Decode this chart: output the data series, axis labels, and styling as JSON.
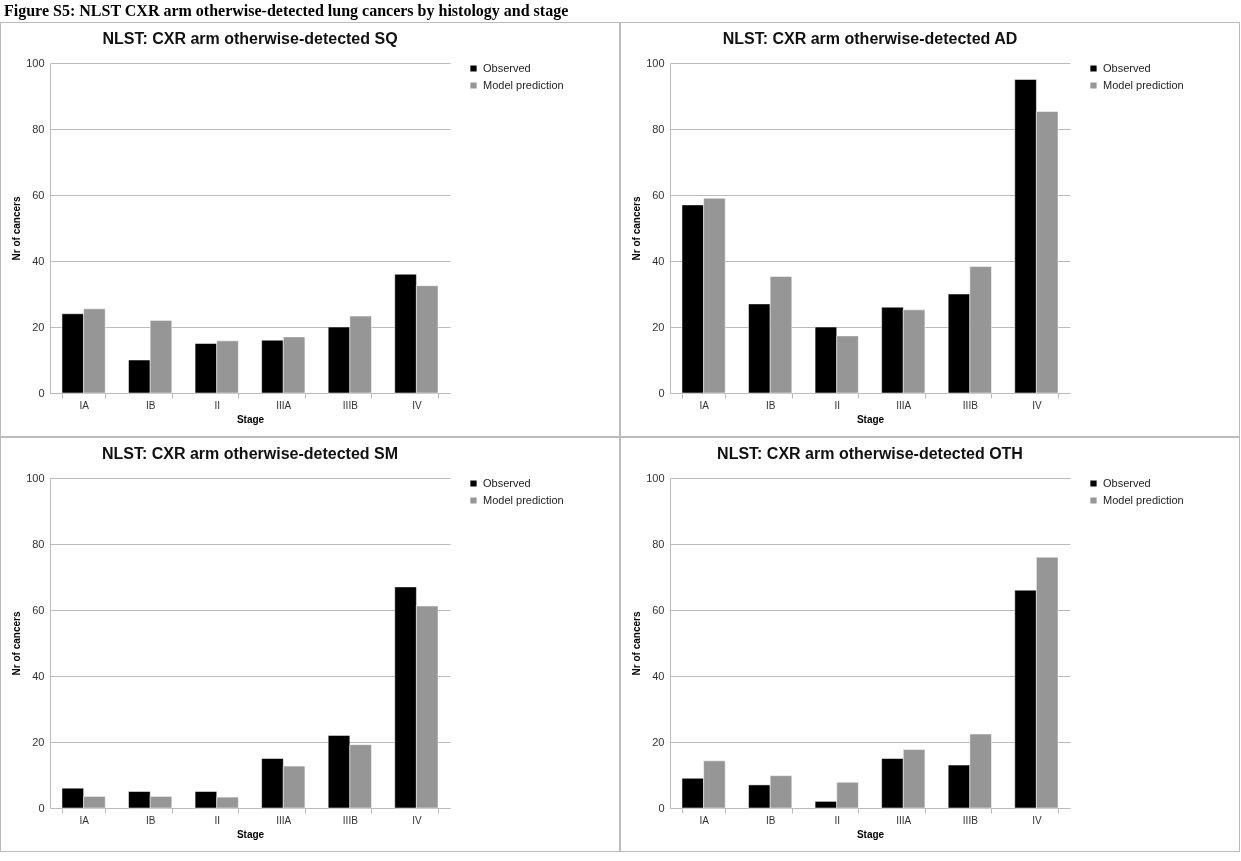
{
  "chart_data": [
    {
      "type": "bar",
      "title": "NLST: CXR arm otherwise-detected SQ",
      "xlabel": "Stage",
      "ylabel": "Nr of cancers",
      "annotations": [
        "Figure S5: NLST CXR arm otherwise-detected lung cancers by histology and stage"
      ],
      "categories": [
        "IA",
        "IB",
        "II",
        "IIIA",
        "IIIB",
        "IV"
      ],
      "ylim": [
        0,
        100
      ],
      "yticks": [
        0,
        20,
        40,
        60,
        80,
        100
      ],
      "grid": "y",
      "legend": "right",
      "series": [
        {
          "name": "Observed",
          "color": "#000000",
          "values": [
            24,
            10,
            15,
            16,
            20,
            36
          ]
        },
        {
          "name": "Model prediction",
          "color": "#969696",
          "values": [
            25.5,
            22,
            15.8,
            17,
            23.3,
            32.5
          ]
        }
      ]
    },
    {
      "type": "bar",
      "title": "NLST: CXR arm otherwise-detected AD",
      "xlabel": "Stage",
      "ylabel": "Nr of cancers",
      "categories": [
        "IA",
        "IB",
        "II",
        "IIIA",
        "IIIB",
        "IV"
      ],
      "ylim": [
        0,
        100
      ],
      "yticks": [
        0,
        20,
        40,
        60,
        80,
        100
      ],
      "grid": "y",
      "legend": "right",
      "series": [
        {
          "name": "Observed",
          "color": "#000000",
          "values": [
            57,
            27,
            20,
            26,
            30,
            95
          ]
        },
        {
          "name": "Model prediction",
          "color": "#969696",
          "values": [
            59,
            35.3,
            17.3,
            25.2,
            38.3,
            85.3
          ]
        }
      ]
    },
    {
      "type": "bar",
      "title": "NLST: CXR arm otherwise-detected SM",
      "xlabel": "Stage",
      "ylabel": "Nr of cancers",
      "categories": [
        "IA",
        "IB",
        "II",
        "IIIA",
        "IIIB",
        "IV"
      ],
      "ylim": [
        0,
        100
      ],
      "yticks": [
        0,
        20,
        40,
        60,
        80,
        100
      ],
      "grid": "y",
      "legend": "right",
      "series": [
        {
          "name": "Observed",
          "color": "#000000",
          "values": [
            6,
            5,
            5,
            15,
            22,
            67
          ]
        },
        {
          "name": "Model prediction",
          "color": "#969696",
          "values": [
            3.5,
            3.5,
            3.3,
            12.7,
            19.2,
            61.2
          ]
        }
      ]
    },
    {
      "type": "bar",
      "title": "NLST: CXR arm otherwise-detected OTH",
      "xlabel": "Stage",
      "ylabel": "Nr of cancers",
      "categories": [
        "IA",
        "IB",
        "II",
        "IIIA",
        "IIIB",
        "IV"
      ],
      "ylim": [
        0,
        100
      ],
      "yticks": [
        0,
        20,
        40,
        60,
        80,
        100
      ],
      "grid": "y",
      "legend": "right",
      "series": [
        {
          "name": "Observed",
          "color": "#000000",
          "values": [
            9,
            7,
            2,
            15,
            13,
            66
          ]
        },
        {
          "name": "Model prediction",
          "color": "#969696",
          "values": [
            14.3,
            9.8,
            7.8,
            17.7,
            22.4,
            76
          ]
        }
      ]
    }
  ]
}
